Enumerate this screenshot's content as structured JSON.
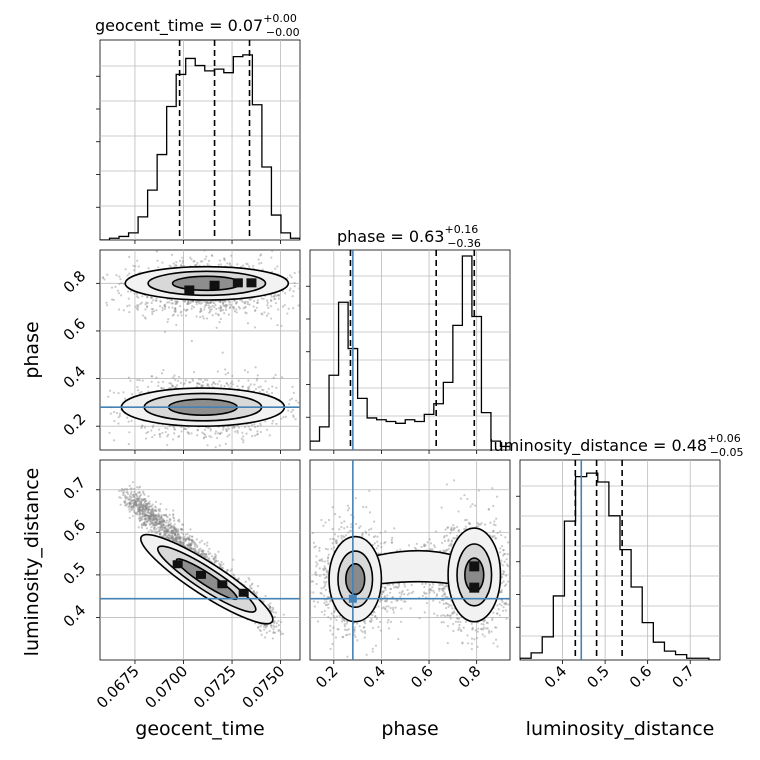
{
  "chart_data": {
    "type": "corner",
    "parameters": [
      "geocent_time",
      "phase",
      "luminosity_distance"
    ],
    "ranges": {
      "geocent_time": [
        0.0657,
        0.076
      ],
      "phase": [
        0.1,
        0.94
      ],
      "luminosity_distance": [
        0.3,
        0.77
      ]
    },
    "ticks": {
      "geocent_time": [
        "0.0675",
        "0.0700",
        "0.0725",
        "0.0750"
      ],
      "phase": [
        "0.2",
        "0.4",
        "0.6",
        "0.8"
      ],
      "luminosity_distance": [
        "0.4",
        "0.5",
        "0.6",
        "0.7"
      ]
    },
    "titles": [
      {
        "param": "geocent_time",
        "text": "geocent_time = 0.07",
        "plus": "+0.00",
        "minus": "−0.00"
      },
      {
        "param": "phase",
        "text": "phase = 0.63",
        "plus": "+0.16",
        "minus": "−0.36"
      },
      {
        "param": "luminosity_distance",
        "text": "luminosity_distance = 0.48",
        "plus": "+0.06",
        "minus": "−0.05"
      }
    ],
    "quantile_lines": {
      "geocent_time": [
        0.0698,
        0.0716,
        0.0734
      ],
      "phase": [
        0.27,
        0.63,
        0.79
      ],
      "luminosity_distance": [
        0.43,
        0.48,
        0.54
      ]
    },
    "truths": {
      "phase": 0.28,
      "luminosity_distance": 0.444
    },
    "histograms": {
      "geocent_time": [
        0.0,
        0.01,
        0.02,
        0.04,
        0.13,
        0.28,
        0.48,
        0.75,
        0.93,
        1.02,
        0.98,
        0.95,
        0.96,
        0.94,
        1.03,
        1.04,
        0.76,
        0.41,
        0.14,
        0.04,
        0.01
      ],
      "phase": [
        0.05,
        0.13,
        0.42,
        0.83,
        0.57,
        0.29,
        0.18,
        0.17,
        0.16,
        0.15,
        0.17,
        0.16,
        0.2,
        0.26,
        0.38,
        0.7,
        1.09,
        0.75,
        0.21,
        0.05,
        0.02
      ],
      "luminosity_distance": [
        0.01,
        0.04,
        0.13,
        0.36,
        0.78,
        1.03,
        1.05,
        1.0,
        0.81,
        0.62,
        0.41,
        0.21,
        0.1,
        0.05,
        0.03,
        0.01,
        0.01,
        0.0
      ]
    },
    "contour_blobs": {
      "geocent_time_phase": [
        {
          "cx": 0.0712,
          "cy": 0.8,
          "rx": 0.0042,
          "ry": 0.07
        },
        {
          "cx": 0.071,
          "cy": 0.28,
          "rx": 0.0042,
          "ry": 0.08
        }
      ],
      "phase_luminosity_distance": [
        {
          "cx": 0.29,
          "cy": 0.49,
          "rx": 0.11,
          "ry": 0.1
        },
        {
          "cx": 0.79,
          "cy": 0.5,
          "rx": 0.11,
          "ry": 0.11
        }
      ]
    },
    "correlation": {
      "geocent_time_luminosity_distance": "negative"
    },
    "xlabel_bottom": [
      "geocent_time",
      "phase",
      "luminosity_distance"
    ],
    "ylabel_left": [
      "phase",
      "luminosity_distance"
    ],
    "grid": true,
    "truth_color": "#4682b4"
  }
}
